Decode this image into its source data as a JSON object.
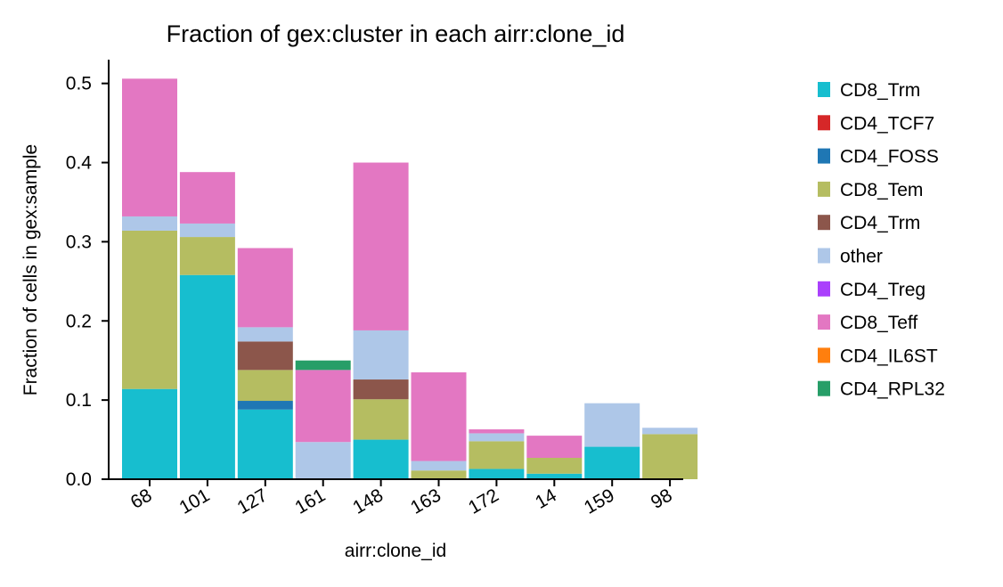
{
  "chart_data": {
    "type": "bar",
    "stacked": true,
    "title": "Fraction of gex:cluster in each airr:clone_id",
    "xlabel": "airr:clone_id",
    "ylabel": "Fraction of cells in gex:sample",
    "categories": [
      "68",
      "101",
      "127",
      "161",
      "148",
      "163",
      "172",
      "14",
      "159",
      "98"
    ],
    "ylim": [
      0,
      0.53
    ],
    "yticks": [
      0.0,
      0.1,
      0.2,
      0.3,
      0.4,
      0.5
    ],
    "ytick_labels": [
      "0.0",
      "0.1",
      "0.2",
      "0.3",
      "0.4",
      "0.5"
    ],
    "grid": false,
    "legend_position": "right",
    "series": [
      {
        "name": "CD8_Trm",
        "color": "#17becf",
        "values": [
          0.114,
          0.258,
          0.088,
          0.0,
          0.05,
          0.0,
          0.013,
          0.007,
          0.041,
          0.0
        ]
      },
      {
        "name": "CD4_TCF7",
        "color": "#d62728",
        "values": [
          0.0,
          0.0,
          0.0,
          0.0,
          0.0,
          0.0,
          0.0,
          0.0,
          0.0,
          0.0
        ]
      },
      {
        "name": "CD4_FOSS",
        "color": "#1f77b4",
        "values": [
          0.0,
          0.0,
          0.011,
          0.0,
          0.0,
          0.0,
          0.0,
          0.0,
          0.0,
          0.0
        ]
      },
      {
        "name": "CD8_Tem",
        "color": "#b5bd61",
        "values": [
          0.2,
          0.048,
          0.039,
          0.0,
          0.051,
          0.011,
          0.035,
          0.02,
          0.0,
          0.057
        ]
      },
      {
        "name": "CD4_Trm",
        "color": "#8c564b",
        "values": [
          0.0,
          0.0,
          0.036,
          0.0,
          0.025,
          0.0,
          0.0,
          0.0,
          0.0,
          0.0
        ]
      },
      {
        "name": "other",
        "color": "#aec7e8",
        "values": [
          0.018,
          0.017,
          0.018,
          0.047,
          0.062,
          0.012,
          0.01,
          0.0,
          0.055,
          0.008
        ]
      },
      {
        "name": "CD4_Treg",
        "color": "#aa40fc",
        "values": [
          0.0,
          0.0,
          0.0,
          0.0,
          0.0,
          0.0,
          0.0,
          0.0,
          0.0,
          0.0
        ]
      },
      {
        "name": "CD8_Teff",
        "color": "#e377c2",
        "values": [
          0.174,
          0.065,
          0.1,
          0.091,
          0.212,
          0.112,
          0.005,
          0.028,
          0.0,
          0.0
        ]
      },
      {
        "name": "CD4_IL6ST",
        "color": "#ff7f0e",
        "values": [
          0.0,
          0.0,
          0.0,
          0.0,
          0.0,
          0.0,
          0.0,
          0.0,
          0.0,
          0.0
        ]
      },
      {
        "name": "CD4_RPL32",
        "color": "#279e68",
        "values": [
          0.0,
          0.0,
          0.0,
          0.012,
          0.0,
          0.0,
          0.0,
          0.0,
          0.0,
          0.0
        ]
      }
    ]
  }
}
